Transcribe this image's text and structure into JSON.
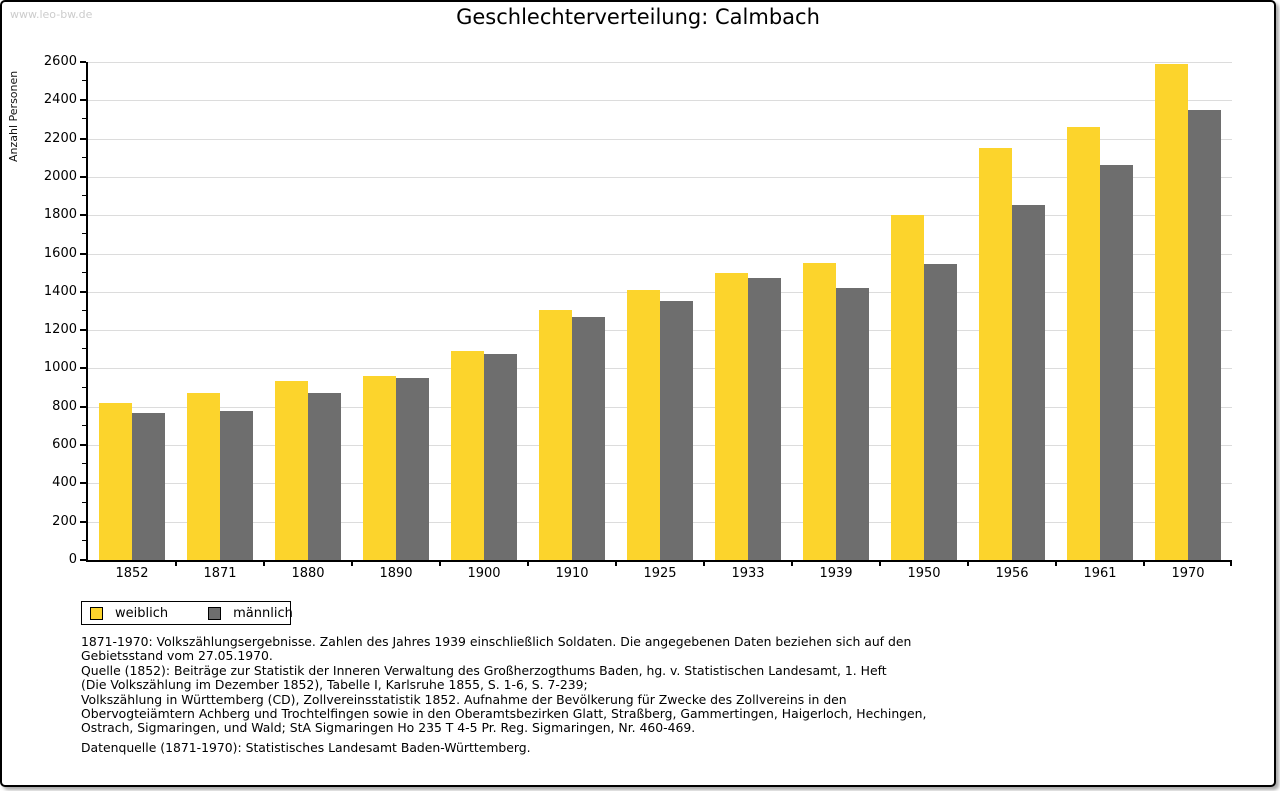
{
  "watermark": "www.leo-bw.de",
  "title": "Geschlechterverteilung: Calmbach",
  "colors": {
    "weiblich": "#fcd42c",
    "maennlich": "#6e6e6e",
    "gridline": "#dcdcdc",
    "axis": "#000000",
    "watermark": "#cccccc"
  },
  "chart_data": {
    "type": "bar",
    "title": "Geschlechterverteilung: Calmbach",
    "xlabel": "",
    "ylabel": "Anzahl Personen",
    "ylim": [
      0,
      2600
    ],
    "ytick_step": 200,
    "ytick_minor_step": 100,
    "yticklabels": [
      "0",
      "200",
      "400",
      "600",
      "800",
      "1000",
      "1200",
      "1400",
      "1600",
      "1800",
      "2000",
      "2200",
      "2400",
      "2600"
    ],
    "grid": true,
    "legend_position": "bottom-left",
    "categories": [
      "1852",
      "1871",
      "1880",
      "1890",
      "1900",
      "1910",
      "1925",
      "1933",
      "1939",
      "1950",
      "1956",
      "1961",
      "1970"
    ],
    "series": [
      {
        "name": "weiblich",
        "color": "#fcd42c",
        "values": [
          820,
          870,
          935,
          960,
          1090,
          1305,
          1410,
          1500,
          1550,
          1800,
          2150,
          2260,
          2590
        ]
      },
      {
        "name": "männlich",
        "color": "#6e6e6e",
        "values": [
          765,
          780,
          870,
          950,
          1075,
          1270,
          1350,
          1470,
          1420,
          1545,
          1855,
          2060,
          2350
        ]
      }
    ]
  },
  "legend": {
    "items": [
      {
        "label": "weiblich",
        "color": "#fcd42c"
      },
      {
        "label": "männlich",
        "color": "#6e6e6e"
      }
    ]
  },
  "footnotes": {
    "lines": [
      "1871-1970: Volkszählungsergebnisse. Zahlen des Jahres 1939 einschließlich Soldaten. Die angegebenen Daten beziehen sich auf den",
      "Gebietsstand vom 27.05.1970.",
      "Quelle (1852): Beiträge zur Statistik der Inneren Verwaltung des Großherzogthums Baden, hg. v. Statistischen Landesamt, 1. Heft",
      "(Die Volkszählung im Dezember 1852), Tabelle I, Karlsruhe 1855, S. 1-6, S. 7-239;",
      "Volkszählung in Württemberg (CD), Zollvereinsstatistik 1852. Aufnahme der Bevölkerung für Zwecke des Zollvereins in den",
      "Obervogteiämtern Achberg und Trochtelfingen sowie in den Oberamtsbezirken Glatt, Straßberg, Gammertingen, Haigerloch, Hechingen,",
      "Ostrach, Sigmaringen, und Wald; StA Sigmaringen Ho 235 T 4-5 Pr. Reg. Sigmaringen, Nr. 460-469."
    ],
    "datasource": "Datenquelle (1871-1970): Statistisches Landesamt Baden-Württemberg."
  }
}
